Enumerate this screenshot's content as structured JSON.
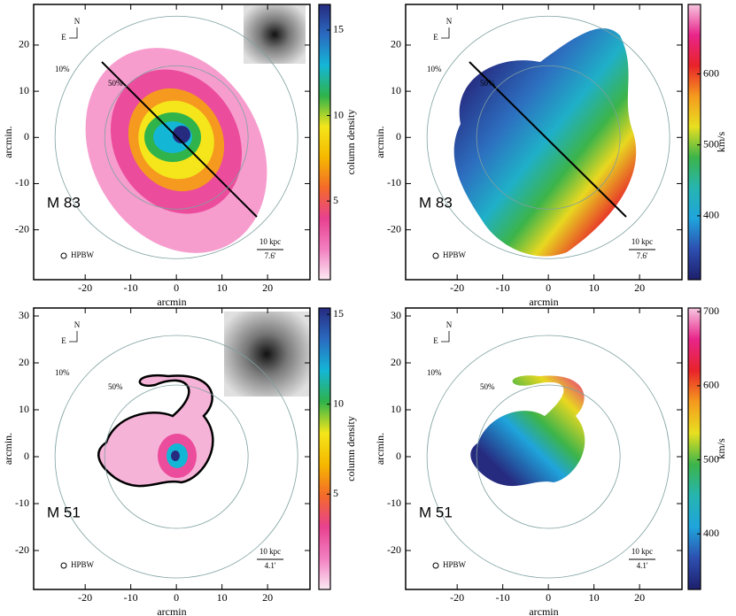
{
  "chart_data": [
    {
      "type": "heatmap",
      "title": "M 83",
      "xlabel": "arcmin",
      "ylabel": "arcmin.",
      "xlim": [
        -31.3,
        29.3
      ],
      "ylim": [
        -30.8,
        28.8
      ],
      "xticks": [
        -20,
        -10,
        0,
        10,
        20
      ],
      "yticks": [
        -20,
        -10,
        0,
        10,
        20
      ],
      "colorbar": {
        "label": "column density",
        "lim": [
          0.4,
          16.5
        ],
        "ticks": [
          5,
          10,
          15
        ],
        "colors": [
          "#fbe9f3",
          "#f27fc0",
          "#e8418f",
          "#f46a2a",
          "#f5b800",
          "#f4e61b",
          "#2fb34a",
          "#14b6d6",
          "#2a6bc0",
          "#262b80"
        ]
      },
      "annotations": {
        "north": "N",
        "east": "E",
        "outer": "10%",
        "inner": "50%",
        "beam": "HPBW",
        "scale": "10 kpc",
        "scale_angle": "7.6'"
      }
    },
    {
      "type": "heatmap",
      "title": "M 83",
      "xlabel": "arcmin",
      "ylabel": "arcmin.",
      "xlim": [
        -31.3,
        29.3
      ],
      "ylim": [
        -30.8,
        28.8
      ],
      "xticks": [
        -20,
        -10,
        0,
        10,
        20
      ],
      "yticks": [
        -20,
        -10,
        0,
        10,
        20
      ],
      "colorbar": {
        "label": "km/s",
        "lim": [
          310,
          698
        ],
        "ticks": [
          400,
          500,
          600
        ],
        "colors": [
          "#1e1f6b",
          "#2d4fb0",
          "#1fa4dc",
          "#26b5b0",
          "#3cb44a",
          "#e8e020",
          "#f59a1e",
          "#e8232a",
          "#e8258a",
          "#f7c6e0"
        ]
      },
      "annotations": {
        "north": "N",
        "east": "E",
        "outer": "10%",
        "inner": "50%",
        "beam": "HPBW",
        "scale": "10 kpc",
        "scale_angle": "7.6'"
      }
    },
    {
      "type": "heatmap",
      "title": "M 51",
      "xlabel": "arcmin",
      "ylabel": "arcmin.",
      "xlim": [
        -31.3,
        29.3
      ],
      "ylim": [
        -28.3,
        31.7
      ],
      "xticks": [
        -20,
        -10,
        0,
        10,
        20
      ],
      "yticks": [
        -20,
        -10,
        0,
        10,
        20,
        30
      ],
      "colorbar": {
        "label": "column density",
        "lim": [
          -0.3,
          15.35
        ],
        "ticks": [
          5,
          10,
          15
        ],
        "colors": [
          "#fbe9f3",
          "#f27fc0",
          "#e8418f",
          "#f46a2a",
          "#f5b800",
          "#f4e61b",
          "#2fb34a",
          "#14b6d6",
          "#2a6bc0",
          "#262b80"
        ]
      },
      "annotations": {
        "north": "N",
        "east": "E",
        "outer": "10%",
        "inner": "50%",
        "beam": "HPBW",
        "scale": "10 kpc",
        "scale_angle": "4.1'"
      }
    },
    {
      "type": "heatmap",
      "title": "M 51",
      "xlabel": "arcmin",
      "ylabel": "arcmin.",
      "xlim": [
        -31.3,
        29.3
      ],
      "ylim": [
        -28.3,
        31.7
      ],
      "xticks": [
        -20,
        -10,
        0,
        10,
        20
      ],
      "yticks": [
        -20,
        -10,
        0,
        10,
        20,
        30
      ],
      "colorbar": {
        "label": "km/s",
        "lim": [
          325,
          705
        ],
        "ticks": [
          400,
          500,
          600,
          700
        ],
        "colors": [
          "#1e1f6b",
          "#2d4fb0",
          "#1fa4dc",
          "#26b5b0",
          "#3cb44a",
          "#e8e020",
          "#f59a1e",
          "#e8232a",
          "#e8258a",
          "#f7c6e0"
        ]
      },
      "annotations": {
        "north": "N",
        "east": "E",
        "outer": "10%",
        "inner": "50%",
        "beam": "HPBW",
        "scale": "10 kpc",
        "scale_angle": "4.1'"
      }
    }
  ]
}
